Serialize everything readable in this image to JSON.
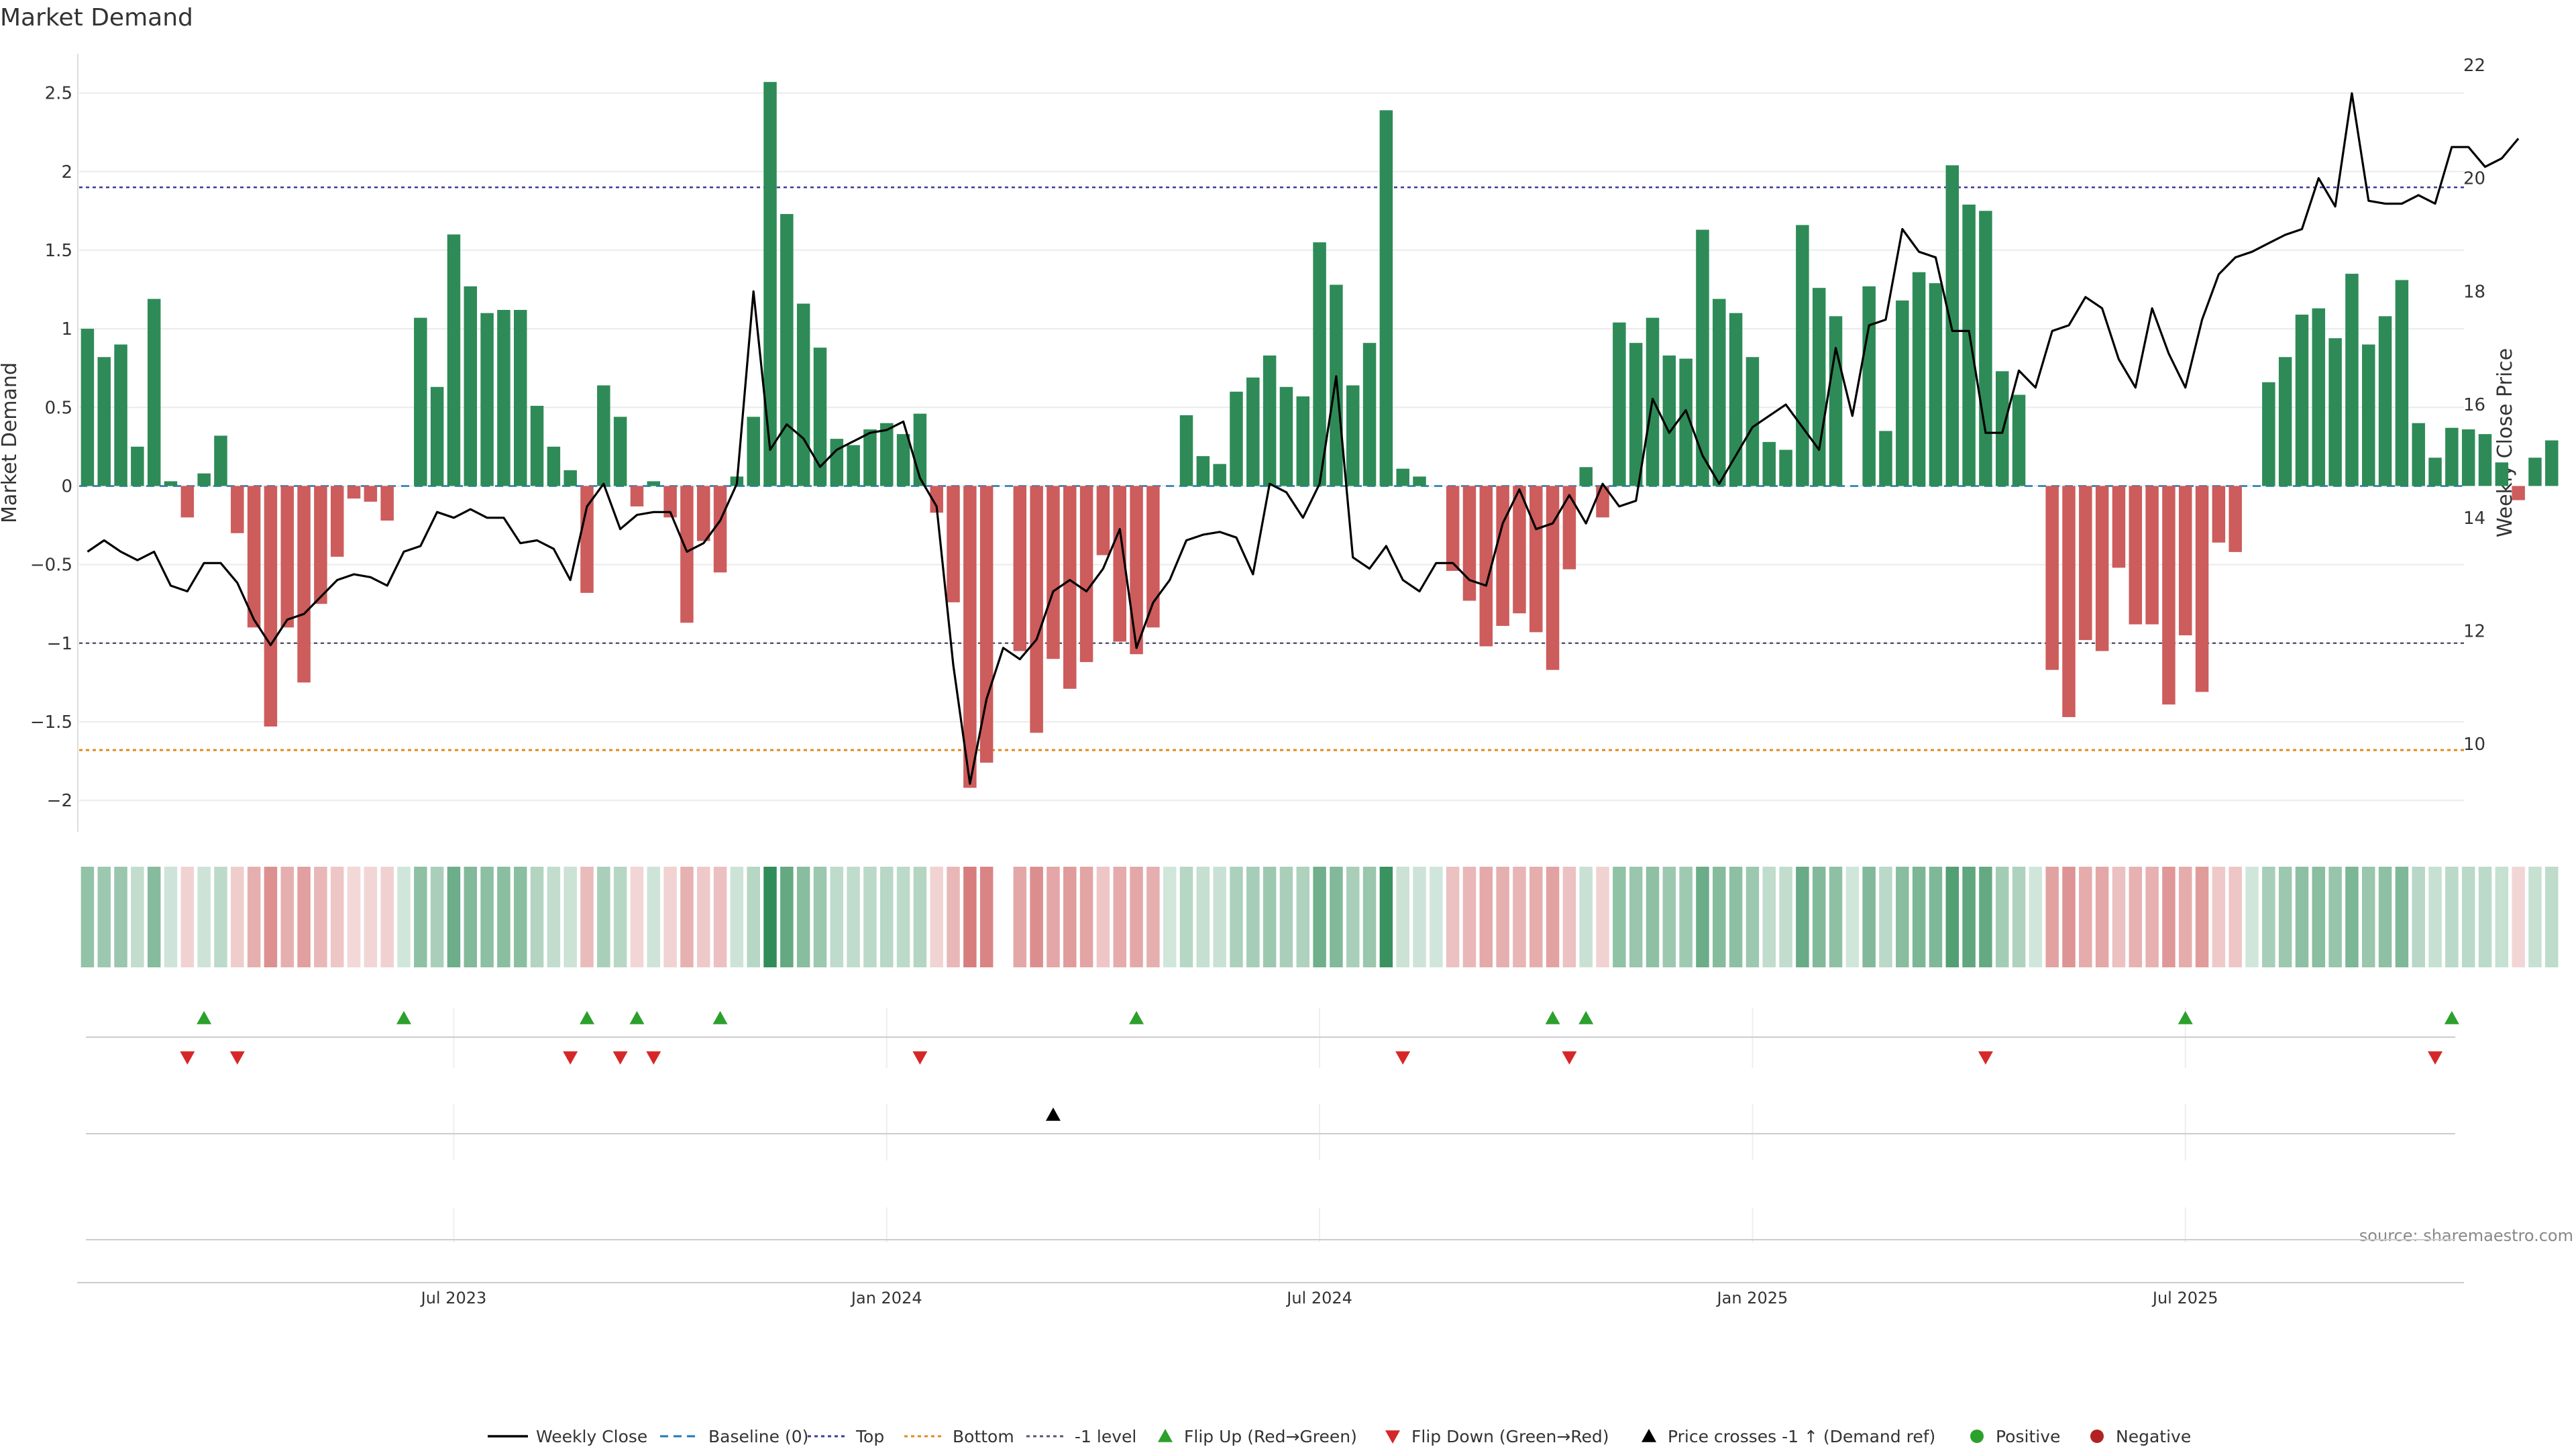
{
  "chart_data": {
    "type": "bar",
    "title": "Market Demand",
    "ylabel": "Market Demand",
    "y2label": "Weekly Close Price",
    "source": "source: sharemaestro.com",
    "ylim": [
      -2.2,
      2.75
    ],
    "y2lim": [
      8.45,
      22.2
    ],
    "yticks": [
      -2,
      -1.5,
      -1,
      -0.5,
      0,
      0.5,
      1,
      1.5,
      2,
      2.5
    ],
    "y2ticks": [
      10,
      12,
      14,
      16,
      18,
      20,
      22
    ],
    "xticks": [
      {
        "i": 22,
        "label": "Jul 2023"
      },
      {
        "i": 48,
        "label": "Jan 2024"
      },
      {
        "i": 74,
        "label": "Jul 2024"
      },
      {
        "i": 100,
        "label": "Jan 2025"
      },
      {
        "i": 126,
        "label": "Jul 2025"
      }
    ],
    "reference_lines": {
      "top": 1.9,
      "bottom": -1.68,
      "minus_one": -1.0
    },
    "demand": [
      1.0,
      0.82,
      0.9,
      0.25,
      1.19,
      0.03,
      -0.2,
      0.08,
      0.32,
      -0.3,
      -0.9,
      -1.53,
      -0.9,
      -1.25,
      -0.75,
      -0.45,
      -0.08,
      -0.1,
      -0.22,
      0.0,
      1.07,
      0.63,
      1.6,
      1.27,
      1.1,
      1.12,
      1.12,
      0.51,
      0.25,
      0.1,
      -0.68,
      0.64,
      0.44,
      -0.13,
      0.03,
      -0.2,
      -0.87,
      -0.35,
      -0.55,
      0.06,
      0.44,
      2.57,
      1.73,
      1.16,
      0.88,
      0.3,
      0.26,
      0.36,
      0.4,
      0.33,
      0.46,
      -0.17,
      -0.74,
      -1.92,
      -1.76,
      0.0,
      -1.05,
      -1.57,
      -1.1,
      -1.29,
      -1.12,
      -0.44,
      -0.99,
      -1.07,
      -0.9,
      0.0,
      0.45,
      0.19,
      0.14,
      0.6,
      0.69,
      0.83,
      0.63,
      0.57,
      1.55,
      1.28,
      0.64,
      0.91,
      2.39,
      0.11,
      0.06,
      0.0,
      -0.54,
      -0.73,
      -1.02,
      -0.89,
      -0.81,
      -0.93,
      -1.17,
      -0.53,
      0.12,
      -0.2,
      1.04,
      0.91,
      1.07,
      0.83,
      0.81,
      1.63,
      1.19,
      1.1,
      0.82,
      0.28,
      0.23,
      1.66,
      1.26,
      1.08,
      0.0,
      1.27,
      0.35,
      1.18,
      1.36,
      1.29,
      2.04,
      1.79,
      1.75,
      0.73,
      0.58,
      0.0,
      -1.17,
      -1.47,
      -0.98,
      -1.05,
      -0.52,
      -0.88,
      -0.88,
      -1.39,
      -0.95,
      -1.31,
      -0.36,
      -0.42,
      0.0,
      0.66,
      0.82,
      1.09,
      1.13,
      0.94,
      1.35,
      0.9,
      1.08,
      1.31,
      0.4,
      0.18,
      0.37,
      0.36,
      0.33,
      0.15,
      -0.09,
      0.18,
      0.29
    ],
    "weekly_close": [
      13.4,
      13.6,
      13.4,
      13.25,
      13.4,
      12.8,
      12.7,
      13.2,
      13.2,
      12.85,
      12.2,
      11.75,
      12.2,
      12.3,
      12.6,
      12.9,
      13.0,
      12.95,
      12.8,
      13.4,
      13.5,
      14.1,
      14.0,
      14.15,
      14.0,
      14.0,
      13.55,
      13.6,
      13.45,
      12.9,
      14.2,
      14.6,
      13.8,
      14.05,
      14.1,
      14.1,
      13.4,
      13.55,
      13.95,
      14.6,
      18.0,
      15.2,
      15.65,
      15.4,
      14.9,
      15.2,
      15.35,
      15.5,
      15.55,
      15.7,
      14.7,
      14.2,
      11.4,
      9.3,
      10.8,
      11.7,
      11.5,
      11.85,
      12.7,
      12.9,
      12.7,
      13.1,
      13.8,
      11.7,
      12.5,
      12.9,
      13.6,
      13.7,
      13.75,
      13.65,
      13.0,
      14.6,
      14.45,
      14.0,
      14.6,
      16.5,
      13.3,
      13.1,
      13.5,
      12.9,
      12.7,
      13.2,
      13.2,
      12.9,
      12.8,
      13.9,
      14.5,
      13.8,
      13.9,
      14.4,
      13.9,
      14.6,
      14.2,
      14.3,
      16.1,
      15.5,
      15.9,
      15.1,
      14.6,
      15.1,
      15.6,
      15.8,
      16.0,
      15.6,
      15.2,
      17.0,
      15.8,
      17.4,
      17.5,
      19.1,
      18.7,
      18.6,
      17.3,
      17.3,
      15.5,
      15.5,
      16.6,
      16.3,
      17.3,
      17.4,
      17.9,
      17.7,
      16.8,
      16.3,
      17.7,
      16.9,
      16.3,
      17.5,
      18.3,
      18.6,
      18.7,
      18.85,
      19.0,
      19.1,
      20.0,
      19.5,
      21.5,
      19.6,
      19.55,
      19.55,
      19.7,
      19.55,
      20.55,
      20.55,
      20.2,
      20.35,
      20.7
    ],
    "flip_up": [
      7,
      19,
      30,
      33,
      38,
      63,
      88,
      90,
      126,
      142
    ],
    "flip_down": [
      6,
      9,
      29,
      32,
      34,
      50,
      79,
      89,
      114,
      141
    ],
    "cross_up": [
      58
    ],
    "legend": [
      "Weekly Close",
      "Baseline (0)",
      "Top",
      "Bottom",
      "-1 level",
      "Flip Up (Red→Green)",
      "Flip Down (Green→Red)",
      "Price crosses -1 ↑ (Demand ref)",
      "Positive",
      "Negative"
    ],
    "colors": {
      "positive": "#2e8b57",
      "negative": "#cd5c5c",
      "price": "#000000",
      "baseline": "#1f77b4",
      "top": "#3b3b9c",
      "bottom": "#e08a1e",
      "minus_one": "#555577",
      "flip_up": "#2ca02c",
      "flip_down": "#d62728",
      "cross": "#000000",
      "legend_positive": "#2ca02c",
      "legend_negative": "#b22222",
      "grid": "#ebebeb",
      "text": "#333333"
    }
  }
}
